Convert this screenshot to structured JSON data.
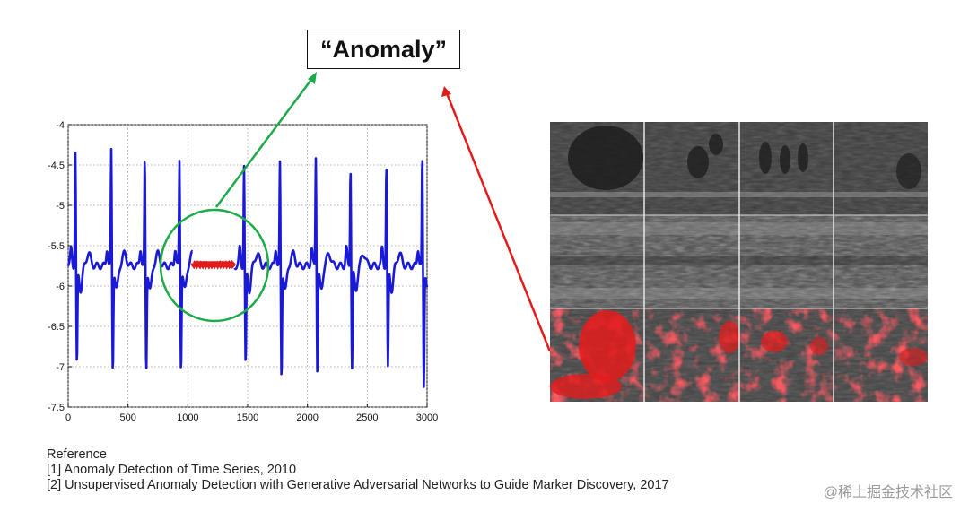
{
  "callout": {
    "label": "“Anomaly”"
  },
  "chart_data": {
    "type": "line",
    "xlim": [
      0,
      3000
    ],
    "ylim": [
      -7.5,
      -4
    ],
    "x_ticks": [
      0,
      500,
      1000,
      1500,
      2000,
      2500,
      3000
    ],
    "y_ticks": [
      -4,
      -4.5,
      -5,
      -5.5,
      -6,
      -6.5,
      -7,
      -7.5
    ],
    "x_tick_labels": [
      "0",
      "500",
      "1000",
      "1500",
      "2000",
      "2500",
      "3000"
    ],
    "y_tick_labels": [
      "-4",
      "-4.5",
      "-5",
      "-5.5",
      "-6",
      "-6.5",
      "-7",
      "-7.5"
    ],
    "grid": true,
    "beat_x": [
      60,
      360,
      640,
      930,
      1470,
      1770,
      2070,
      2360,
      2660,
      2960
    ],
    "peak_y": [
      -4.35,
      -4.32,
      -4.45,
      -4.45,
      -4.5,
      -4.48,
      -4.38,
      -4.5,
      -4.5,
      -4.4
    ],
    "trough_y": [
      -6.98,
      -7.02,
      -7.02,
      -7.0,
      -6.98,
      -7.12,
      -7.05,
      -7.0,
      -7.02,
      -7.22
    ],
    "baseline_y": -5.75,
    "anomaly": {
      "x_start": 1040,
      "x_end": 1390,
      "y": -5.73,
      "color": "#e31b1b"
    },
    "series_color": "#1a1ad6"
  },
  "colors": {
    "green_arrow": "#1faa4a",
    "red_arrow": "#e31b1b"
  },
  "references": {
    "heading": "Reference",
    "items": [
      "[1] Anomaly Detection of Time Series, 2010",
      "[2] Unsupervised Anomaly Detection with Generative Adversarial Networks to Guide Marker Discovery, 2017"
    ]
  },
  "watermark": "@稀土掘金技术社区"
}
